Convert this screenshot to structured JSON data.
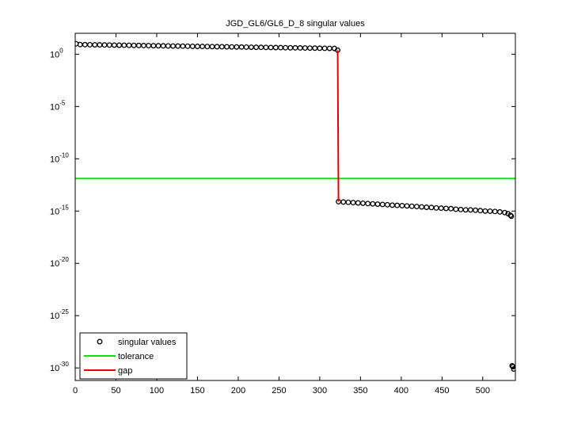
{
  "chart_data": {
    "type": "scatter",
    "title": "JGD_GL6/GL6_D_8 singular values",
    "xlim": [
      0,
      540
    ],
    "ylim": [
      6.3e-32,
      100
    ],
    "log_y": true,
    "xticks": [
      0,
      50,
      100,
      150,
      200,
      250,
      300,
      350,
      400,
      450,
      500
    ],
    "yticks": [
      {
        "value": 1e-30,
        "label": "10",
        "exponent": "-30"
      },
      {
        "value": 1e-25,
        "label": "10",
        "exponent": "-25"
      },
      {
        "value": 1e-20,
        "label": "10",
        "exponent": "-20"
      },
      {
        "value": 1e-15,
        "label": "10",
        "exponent": "-15"
      },
      {
        "value": 1e-10,
        "label": "10",
        "exponent": "-10"
      },
      {
        "value": 1e-05,
        "label": "10",
        "exponent": "-5"
      },
      {
        "value": 1,
        "label": "10",
        "exponent": "0"
      }
    ],
    "legend": "lower left",
    "series": [
      {
        "name": "singular values",
        "color": "#000000",
        "mode": "markers",
        "x": [
          1,
          6,
          12,
          18,
          24,
          30,
          36,
          42,
          48,
          54,
          60,
          66,
          72,
          78,
          84,
          90,
          96,
          102,
          108,
          114,
          120,
          126,
          132,
          138,
          144,
          150,
          156,
          162,
          168,
          174,
          180,
          186,
          192,
          198,
          204,
          210,
          216,
          222,
          228,
          234,
          240,
          246,
          252,
          258,
          264,
          270,
          276,
          282,
          288,
          294,
          300,
          306,
          312,
          318,
          322,
          323,
          329,
          335,
          341,
          347,
          353,
          359,
          365,
          371,
          377,
          383,
          389,
          395,
          401,
          407,
          413,
          419,
          425,
          431,
          437,
          443,
          449,
          455,
          461,
          467,
          473,
          479,
          485,
          491,
          497,
          503,
          509,
          515,
          521,
          527,
          531,
          534,
          535,
          536,
          537,
          538
        ],
        "values": [
          10,
          8.32,
          8.18,
          8.05,
          7.92,
          7.78,
          7.66,
          7.54,
          7.41,
          7.29,
          7.18,
          7.06,
          6.95,
          6.84,
          6.71,
          6.61,
          6.5,
          6.4,
          6.3,
          6.19,
          6.1,
          6.0,
          5.9,
          5.79,
          5.7,
          5.61,
          5.52,
          5.43,
          5.35,
          5.26,
          5.18,
          5.09,
          5.0,
          4.92,
          4.84,
          4.76,
          4.69,
          4.61,
          4.54,
          4.47,
          4.4,
          4.32,
          4.25,
          4.18,
          4.11,
          4.05,
          3.98,
          3.92,
          3.85,
          3.79,
          3.72,
          3.66,
          3.61,
          3.55,
          2.4,
          7.9e-15,
          7.4e-15,
          6.9e-15,
          6.5e-15,
          6e-15,
          5.6e-15,
          5.2e-15,
          4.9e-15,
          4.6e-15,
          4.3e-15,
          4e-15,
          3.7e-15,
          3.5e-15,
          3.3e-15,
          3.1e-15,
          2.9e-15,
          2.7e-15,
          2.5e-15,
          2.3e-15,
          2.2e-15,
          2e-15,
          1.9e-15,
          1.8e-15,
          1.7e-15,
          1.5e-15,
          1.4e-15,
          1.3e-15,
          1.3e-15,
          1.2e-15,
          1.1e-15,
          1e-15,
          9.8e-16,
          9.1e-16,
          8.3e-16,
          7.1e-16,
          5.6e-16,
          4e-16,
          3.2e-16,
          1.6e-30,
          1.3e-30,
          7.9e-31
        ]
      },
      {
        "name": "tolerance",
        "color": "#00e600",
        "mode": "line",
        "x": [
          0,
          540
        ],
        "values": [
          1.3e-12,
          1.3e-12
        ]
      },
      {
        "name": "gap",
        "color": "#e60000",
        "mode": "line",
        "x": [
          322,
          323
        ],
        "values": [
          2.4,
          7.9e-15
        ]
      }
    ]
  }
}
